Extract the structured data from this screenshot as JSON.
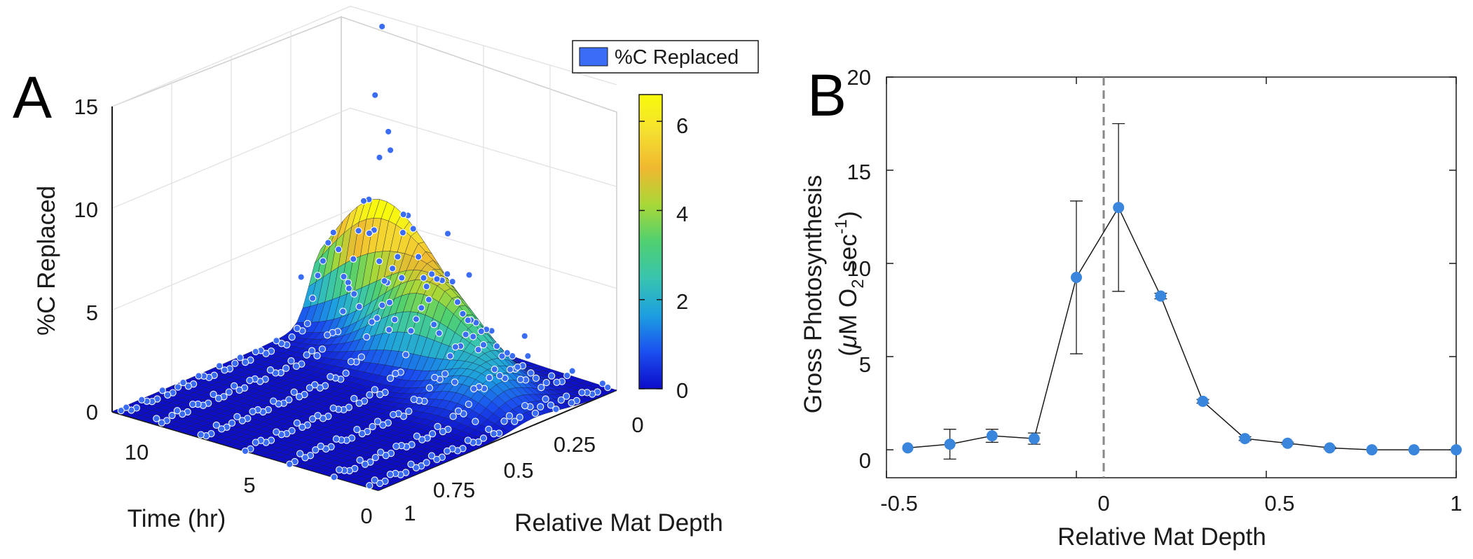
{
  "chart_data": [
    {
      "panel": "A",
      "type": "surface3d",
      "zlabel": "%C Replaced",
      "xlabel": "Time (hr)",
      "ylabel": "Relative Mat Depth",
      "legend": {
        "label": "%C Replaced",
        "color": "#3a6cf5",
        "placement": "top-right"
      },
      "x_ticks": [
        "0",
        "5",
        "10"
      ],
      "y_ticks": [
        "0",
        "0.25",
        "0.5",
        "0.75",
        "1"
      ],
      "z_ticks": [
        "0",
        "5",
        "10",
        "15"
      ],
      "xlim": [
        0,
        12
      ],
      "ylim": [
        0,
        1
      ],
      "zlim": [
        0,
        15
      ],
      "colorbar": {
        "ticks": [
          "0",
          "2",
          "4",
          "6"
        ],
        "range": [
          0,
          6.6
        ],
        "colormap": "parula",
        "colors": [
          "#0c0cc8",
          "#1b4ff0",
          "#1d9fe0",
          "#38c4b0",
          "#4fd070",
          "#a8d838",
          "#f0b830",
          "#f5e030",
          "#f8fa0c"
        ]
      },
      "grid": true,
      "series": [
        {
          "name": "%C Replaced",
          "points": [
            {
              "time": 9.5,
              "depth": 0.1,
              "value": 15.3
            },
            {
              "time": 9.6,
              "depth": 0.12,
              "value": 12.0
            },
            {
              "time": 9.0,
              "depth": 0.12,
              "value": 10.4
            },
            {
              "time": 8.8,
              "depth": 0.13,
              "value": 9.6
            },
            {
              "time": 9.4,
              "depth": 0.12,
              "value": 9.0
            },
            {
              "time": 8.0,
              "depth": 0.15,
              "value": 6.8
            },
            {
              "time": 6.0,
              "depth": 0.15,
              "value": 6.5
            },
            {
              "time": 9.0,
              "depth": 0.2,
              "value": 5.8
            },
            {
              "time": 4.5,
              "depth": 0.2,
              "value": 5.2
            },
            {
              "time": 7.0,
              "depth": 0.25,
              "value": 4.5
            },
            {
              "time": 2.0,
              "depth": 0.2,
              "value": 3.0
            },
            {
              "time": 11.0,
              "depth": 0.3,
              "value": 3.5
            },
            {
              "time": 6.5,
              "depth": 0.35,
              "value": 2.6
            },
            {
              "time": 3.0,
              "depth": 0.4,
              "value": 1.4
            },
            {
              "time": 1.0,
              "depth": 0.5,
              "value": 0.6
            }
          ]
        }
      ]
    },
    {
      "panel": "B",
      "type": "line",
      "xlabel": "Relative Mat Depth",
      "ylabel": "Gross Photosynthesis",
      "ylabel_line2": {
        "open": "(",
        "mu": "μ",
        "unit1": "M O",
        "sub": "2",
        "unit2": " sec",
        "sup": "-1",
        "close": ")"
      },
      "xlim": [
        -0.5,
        1
      ],
      "ylim": [
        -1.5,
        20
      ],
      "x_ticks": [
        "-0.5",
        "0",
        "0.5",
        "1"
      ],
      "y_ticks": [
        "0",
        "5",
        "10",
        "15",
        "20"
      ],
      "reference_line": {
        "x": 0,
        "style": "dashed"
      },
      "marker_color": "#3b86dd",
      "series": [
        {
          "x": [
            -0.444,
            -0.333,
            -0.222,
            -0.111,
            0.0,
            0.111,
            0.222,
            0.333,
            0.444,
            0.556,
            0.667,
            0.778,
            0.889,
            1.0
          ],
          "y": [
            0.1,
            0.3,
            0.75,
            0.6,
            9.25,
            13.0,
            8.25,
            2.6,
            0.6,
            0.35,
            0.1,
            0.0,
            0.0,
            0.0
          ],
          "err": [
            0.0,
            0.8,
            0.35,
            0.3,
            4.1,
            4.5,
            0.15,
            0.1,
            0.1,
            0.05,
            0.05,
            0.0,
            0.0,
            0.0
          ]
        }
      ]
    }
  ],
  "labels": {
    "panel_a": "A",
    "panel_b": "B"
  }
}
